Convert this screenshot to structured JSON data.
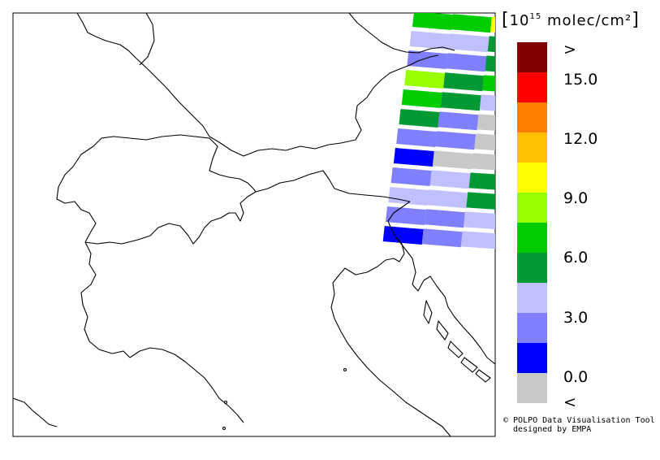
{
  "legend": {
    "unit_bracket_open": "[",
    "unit_base": "10",
    "unit_exponent": "15",
    "unit_rest": " molec/cm²",
    "unit_bracket_close": "]",
    "labels": [
      ">",
      "15.0",
      "12.0",
      "9.0",
      "6.0",
      "3.0",
      "0.0",
      "<"
    ],
    "bins": [
      {
        "color": "#800000"
      },
      {
        "color": "#ff0000"
      },
      {
        "color": "#ff8000"
      },
      {
        "color": "#ffc000"
      },
      {
        "color": "#ffff00"
      },
      {
        "color": "#99ff00"
      },
      {
        "color": "#00cc00"
      },
      {
        "color": "#009933"
      },
      {
        "color": "#c0c0ff"
      },
      {
        "color": "#8080ff"
      },
      {
        "color": "#0000ff"
      },
      {
        "color": "#c8c8c8"
      }
    ]
  },
  "credit": {
    "line1": "© POLPO Data Visualisation Tool",
    "line2": "designed by EMPA"
  },
  "swath_rows": [
    [
      "#00cc00",
      "#00cc00",
      "#ffff00"
    ],
    [
      "#c0c0ff",
      "#c0c0ff",
      "#009933"
    ],
    [
      "#8080ff",
      "#8080ff",
      "#009933"
    ],
    [
      "#99ff00",
      "#009933",
      "#00cc00"
    ],
    [
      "#00cc00",
      "#009933",
      "#c0c0ff"
    ],
    [
      "#009933",
      "#8080ff",
      "#c8c8c8"
    ],
    [
      "#8080ff",
      "#8080ff",
      "#c8c8c8"
    ],
    [
      "#0000ff",
      "#c8c8c8",
      "#c8c8c8"
    ],
    [
      "#8080ff",
      "#c0c0ff",
      "#009933"
    ],
    [
      "#c0c0ff",
      "#c0c0ff",
      "#009933"
    ],
    [
      "#8080ff",
      "#8080ff",
      "#c0c0ff"
    ],
    [
      "#0000ff",
      "#8080ff",
      "#c0c0ff"
    ]
  ]
}
